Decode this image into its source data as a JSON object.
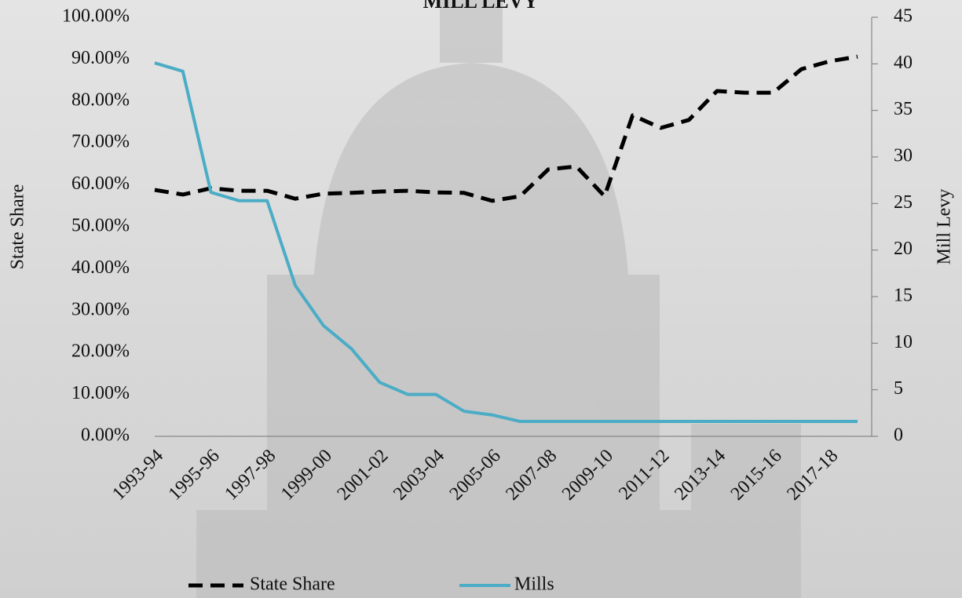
{
  "chart_data": {
    "type": "line",
    "title": "MILL LEVY",
    "y_label": "State Share",
    "y2_label": "Mill Levy",
    "categories": [
      "1993-94",
      null,
      "1995-96",
      null,
      "1997-98",
      null,
      "1999-00",
      null,
      "2001-02",
      null,
      "2003-04",
      null,
      "2005-06",
      null,
      "2007-08",
      null,
      "2009-10",
      null,
      "2011-12",
      null,
      "2013-14",
      null,
      "2015-16",
      null,
      "2017-18",
      null
    ],
    "series": [
      {
        "name": "State Share",
        "color": "#000000",
        "dashed": true,
        "axis": "y",
        "values": [
          58.8,
          57.7,
          59.2,
          58.6,
          58.6,
          56.7,
          57.9,
          58.1,
          58.4,
          58.6,
          58.2,
          58.1,
          56.2,
          57.3,
          63.7,
          64.4,
          57.3,
          76.6,
          73.6,
          75.5,
          82.4,
          82.0,
          82.0,
          87.6,
          89.5,
          90.6
        ]
      },
      {
        "name": "Mills",
        "color": "#4bacc6",
        "dashed": false,
        "axis": "y2",
        "values": [
          40.1,
          39.2,
          26.2,
          25.3,
          25.3,
          16.2,
          11.9,
          9.4,
          5.8,
          4.5,
          4.5,
          2.7,
          2.3,
          1.6,
          1.6,
          1.6,
          1.6,
          1.6,
          1.6,
          1.6,
          1.6,
          1.6,
          1.6,
          1.6,
          1.6,
          1.6
        ]
      }
    ],
    "ylim": [
      0,
      100
    ],
    "yticks": [
      {
        "value": 0,
        "label": "0.00%"
      },
      {
        "value": 10,
        "label": "10.00%"
      },
      {
        "value": 20,
        "label": "20.00%"
      },
      {
        "value": 30,
        "label": "30.00%"
      },
      {
        "value": 40,
        "label": "40.00%"
      },
      {
        "value": 50,
        "label": "50.00%"
      },
      {
        "value": 60,
        "label": "60.00%"
      },
      {
        "value": 70,
        "label": "70.00%"
      },
      {
        "value": 80,
        "label": "80.00%"
      },
      {
        "value": 90,
        "label": "90.00%"
      },
      {
        "value": 100,
        "label": "100.00%"
      }
    ],
    "y2lim": [
      0,
      45
    ],
    "y2ticks": [
      0,
      5,
      10,
      15,
      20,
      25,
      30,
      35,
      40,
      45
    ],
    "legend": "bottom"
  }
}
